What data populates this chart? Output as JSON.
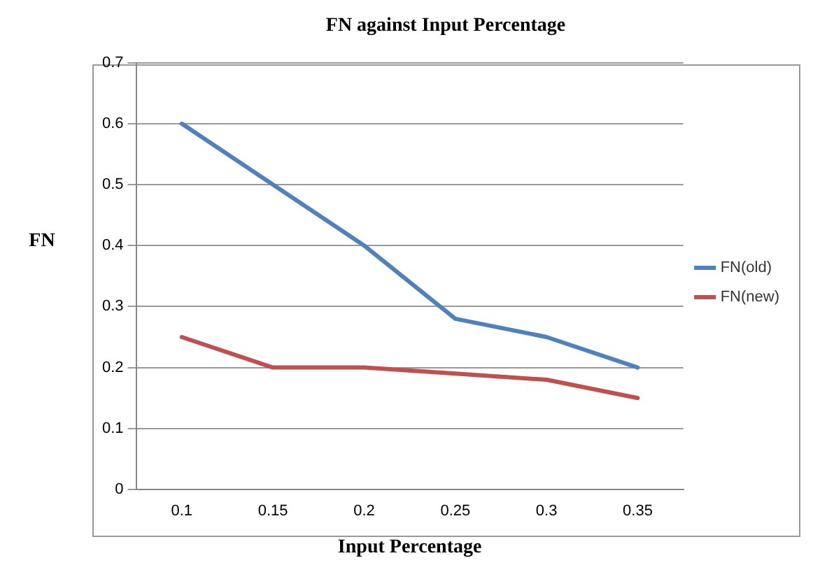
{
  "chart_data": {
    "type": "line",
    "title": "FN against Input Percentage",
    "xlabel": "Input Percentage",
    "ylabel": "FN",
    "categories": [
      "0.1",
      "0.15",
      "0.2",
      "0.25",
      "0.3",
      "0.35"
    ],
    "series": [
      {
        "name": "FN(old)",
        "color": "#4f81bd",
        "values": [
          0.6,
          0.5,
          0.4,
          0.28,
          0.25,
          0.2
        ]
      },
      {
        "name": "FN(new)",
        "color": "#c0504d",
        "values": [
          0.25,
          0.2,
          0.2,
          0.19,
          0.18,
          0.15
        ]
      }
    ],
    "ylim": [
      0,
      0.7
    ],
    "yticks": [
      0,
      0.1,
      0.2,
      0.3,
      0.4,
      0.5,
      0.6,
      0.7
    ],
    "grid": "y",
    "legend": "right",
    "marker": "none",
    "line_style": "solid"
  }
}
